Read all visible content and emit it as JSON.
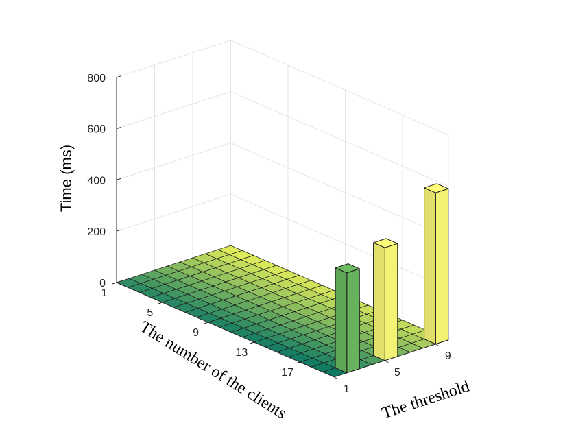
{
  "chart_data": {
    "type": "bar3d",
    "zlabel": "Time (ms)",
    "xlabel": "The number of the clients",
    "ylabel": "The threshold",
    "zlim": [
      0,
      800
    ],
    "z_ticks": [
      "0",
      "200",
      "400",
      "600",
      "800"
    ],
    "x_ticks": [
      "1",
      "5",
      "9",
      "13",
      "17"
    ],
    "y_ticks": [
      "1",
      "5",
      "9"
    ],
    "grid": true,
    "floor": {
      "clients": [
        1,
        20
      ],
      "threshold": [
        1,
        10
      ],
      "height_ms": 0
    },
    "bars": [
      {
        "clients": 20,
        "threshold": 3,
        "time_ms": 390
      },
      {
        "clients": 20,
        "threshold": 6,
        "time_ms": 440
      },
      {
        "clients": 20,
        "threshold": 10,
        "time_ms": 590
      }
    ],
    "colors": {
      "floor_low": "#0f7a64",
      "floor_high": "#f2f55a",
      "bar_green": "#6cbb62",
      "bar_yellow": "#ffff7a",
      "grid": "#e4e4e4",
      "axis": "#262626"
    }
  }
}
